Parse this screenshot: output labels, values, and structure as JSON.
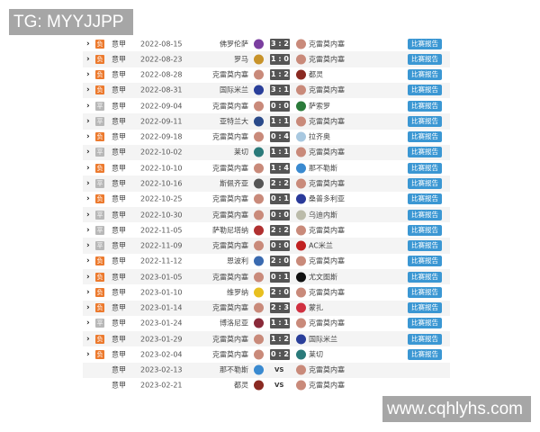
{
  "watermark_top": "TG: MYYJJPP",
  "watermark_bottom": "www.cqhlyhs.com",
  "report_label": "比赛报告",
  "vs_label": "VS",
  "colors": {
    "loss": "#ec7a2e",
    "draw": "#b8b8b8",
    "button": "#3b97d3",
    "score_bg": "#555555"
  },
  "matches": [
    {
      "result": "负",
      "league": "意甲",
      "date": "2022-08-15",
      "home": "佛罗伦萨",
      "score": "3 : 2",
      "away": "克雷莫内塞",
      "hc": "#7b3fa0",
      "ac": "#c98a7a"
    },
    {
      "result": "负",
      "league": "意甲",
      "date": "2022-08-23",
      "home": "罗马",
      "score": "1 : 0",
      "away": "克雷莫内塞",
      "hc": "#c8932a",
      "ac": "#c98a7a"
    },
    {
      "result": "负",
      "league": "意甲",
      "date": "2022-08-28",
      "home": "克雷莫内塞",
      "score": "1 : 2",
      "away": "都灵",
      "hc": "#c98a7a",
      "ac": "#8a2a22"
    },
    {
      "result": "负",
      "league": "意甲",
      "date": "2022-08-31",
      "home": "国际米兰",
      "score": "3 : 1",
      "away": "克雷莫内塞",
      "hc": "#2a3f9a",
      "ac": "#c98a7a"
    },
    {
      "result": "平",
      "league": "意甲",
      "date": "2022-09-04",
      "home": "克雷莫内塞",
      "score": "0 : 0",
      "away": "萨索罗",
      "hc": "#c98a7a",
      "ac": "#2a7a3a"
    },
    {
      "result": "平",
      "league": "意甲",
      "date": "2022-09-11",
      "home": "亚特兰大",
      "score": "1 : 1",
      "away": "克雷莫内塞",
      "hc": "#2a4a8a",
      "ac": "#c98a7a"
    },
    {
      "result": "负",
      "league": "意甲",
      "date": "2022-09-18",
      "home": "克雷莫内塞",
      "score": "0 : 4",
      "away": "拉齐奥",
      "hc": "#c98a7a",
      "ac": "#a8c8e0"
    },
    {
      "result": "平",
      "league": "意甲",
      "date": "2022-10-02",
      "home": "莱切",
      "score": "1 : 1",
      "away": "克雷莫内塞",
      "hc": "#2a7a7a",
      "ac": "#c98a7a"
    },
    {
      "result": "负",
      "league": "意甲",
      "date": "2022-10-10",
      "home": "克雷莫内塞",
      "score": "1 : 4",
      "away": "那不勒斯",
      "hc": "#c98a7a",
      "ac": "#3a8ad0"
    },
    {
      "result": "平",
      "league": "意甲",
      "date": "2022-10-16",
      "home": "斯佩齐亚",
      "score": "2 : 2",
      "away": "克雷莫内塞",
      "hc": "#555555",
      "ac": "#c98a7a"
    },
    {
      "result": "负",
      "league": "意甲",
      "date": "2022-10-25",
      "home": "克雷莫内塞",
      "score": "0 : 1",
      "away": "桑普多利亚",
      "hc": "#c98a7a",
      "ac": "#2a3a9a"
    },
    {
      "result": "平",
      "league": "意甲",
      "date": "2022-10-30",
      "home": "克雷莫内塞",
      "score": "0 : 0",
      "away": "乌迪内斯",
      "hc": "#c98a7a",
      "ac": "#bbbbaa"
    },
    {
      "result": "平",
      "league": "意甲",
      "date": "2022-11-05",
      "home": "萨勒尼塔纳",
      "score": "2 : 2",
      "away": "克雷莫内塞",
      "hc": "#b03030",
      "ac": "#c98a7a"
    },
    {
      "result": "平",
      "league": "意甲",
      "date": "2022-11-09",
      "home": "克雷莫内塞",
      "score": "0 : 0",
      "away": "AC米兰",
      "hc": "#c98a7a",
      "ac": "#c02020"
    },
    {
      "result": "负",
      "league": "意甲",
      "date": "2022-11-12",
      "home": "恩波利",
      "score": "2 : 0",
      "away": "克雷莫内塞",
      "hc": "#3a6ab0",
      "ac": "#c98a7a"
    },
    {
      "result": "负",
      "league": "意甲",
      "date": "2023-01-05",
      "home": "克雷莫内塞",
      "score": "0 : 1",
      "away": "尤文图斯",
      "hc": "#c98a7a",
      "ac": "#111111"
    },
    {
      "result": "负",
      "league": "意甲",
      "date": "2023-01-10",
      "home": "维罗纳",
      "score": "2 : 0",
      "away": "克雷莫内塞",
      "hc": "#e8c020",
      "ac": "#c98a7a"
    },
    {
      "result": "负",
      "league": "意甲",
      "date": "2023-01-14",
      "home": "克雷莫内塞",
      "score": "2 : 3",
      "away": "蒙扎",
      "hc": "#c98a7a",
      "ac": "#d03040"
    },
    {
      "result": "平",
      "league": "意甲",
      "date": "2023-01-24",
      "home": "博洛尼亚",
      "score": "1 : 1",
      "away": "克雷莫内塞",
      "hc": "#8a2a3a",
      "ac": "#c98a7a"
    },
    {
      "result": "负",
      "league": "意甲",
      "date": "2023-01-29",
      "home": "克雷莫内塞",
      "score": "1 : 2",
      "away": "国际米兰",
      "hc": "#c98a7a",
      "ac": "#2a3f9a"
    },
    {
      "result": "负",
      "league": "意甲",
      "date": "2023-02-04",
      "home": "克雷莫内塞",
      "score": "0 : 2",
      "away": "莱切",
      "hc": "#c98a7a",
      "ac": "#2a7a7a"
    },
    {
      "result": "",
      "league": "意甲",
      "date": "2023-02-13",
      "home": "那不勒斯",
      "score": "",
      "away": "克雷莫内塞",
      "hc": "#3a8ad0",
      "ac": "#c98a7a"
    },
    {
      "result": "",
      "league": "意甲",
      "date": "2023-02-21",
      "home": "都灵",
      "score": "",
      "away": "克雷莫内塞",
      "hc": "#8a2a22",
      "ac": "#c98a7a"
    }
  ]
}
